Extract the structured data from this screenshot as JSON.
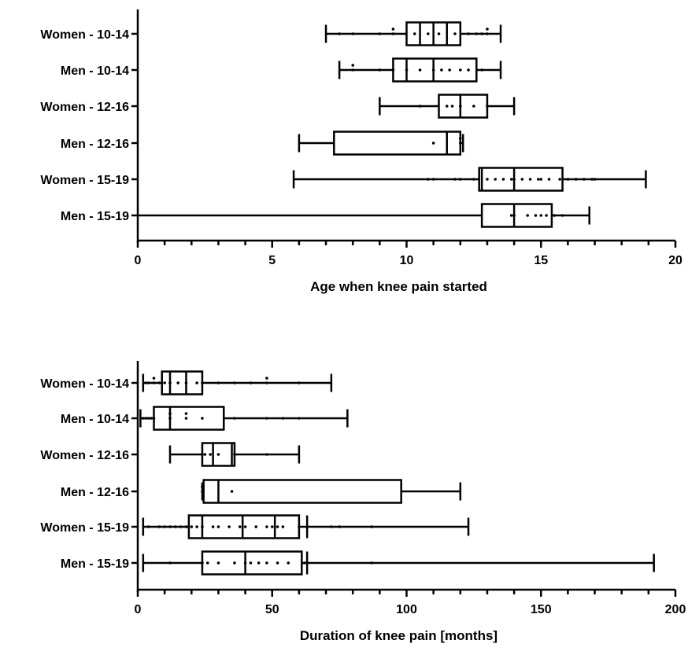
{
  "chart_data": [
    {
      "type": "box",
      "xlabel": "Age when knee pain started",
      "xlim": [
        0,
        20
      ],
      "xticks": [
        0,
        5,
        10,
        15,
        20
      ],
      "categories": [
        "Women - 10-14",
        "Men - 10-14",
        "Women - 12-16",
        "Men - 12-16",
        "Women - 15-19",
        "Men - 15-19"
      ],
      "boxes": [
        {
          "min": 7,
          "q1": 10,
          "median": 11,
          "q3": 12,
          "max": 13.5,
          "extra_lines": [
            10.5,
            11.5
          ]
        },
        {
          "min": 7.5,
          "q1": 9.5,
          "median": 11,
          "q3": 12.6,
          "max": 13.5,
          "extra_lines": [
            10
          ]
        },
        {
          "min": 9,
          "q1": 11.2,
          "median": 12,
          "q3": 13,
          "max": 14,
          "extra_lines": []
        },
        {
          "min": 6,
          "q1": 7.3,
          "median": 11.5,
          "q3": 12,
          "max": 12.1,
          "extra_lines": []
        },
        {
          "min": 5.8,
          "q1": 12.7,
          "median": 14,
          "q3": 15.8,
          "max": 18.9,
          "extra_lines": [
            12.8
          ]
        },
        {
          "min": 0,
          "q1": 12.8,
          "median": 14,
          "q3": 15.4,
          "max": 16.8,
          "extra_lines": []
        }
      ],
      "points": [
        [
          7.5,
          8,
          9,
          9.5,
          9.5,
          10.3,
          10.8,
          11.2,
          11.8,
          12.3,
          12.6,
          12.8,
          13,
          13
        ],
        [
          8,
          8,
          9,
          9.5,
          10,
          10.5,
          11,
          11.3,
          11.6,
          12,
          12.3,
          12.8
        ],
        [
          10.5,
          11.5,
          11.7,
          12,
          12.5,
          13
        ],
        [
          11,
          12,
          12
        ],
        [
          10.8,
          11,
          11.8,
          12,
          12.5,
          13,
          13.3,
          13.6,
          13.9,
          14,
          14.3,
          14.6,
          14.9,
          15,
          15.3,
          15.7,
          16,
          16.3,
          16.6,
          16.9,
          17
        ],
        [
          13.9,
          14,
          14.5,
          14.8,
          15,
          15.2,
          15.5,
          15.8
        ]
      ]
    },
    {
      "type": "box",
      "xlabel": "Duration of knee pain [months]",
      "xlim": [
        0,
        200
      ],
      "xticks": [
        0,
        50,
        100,
        150,
        200
      ],
      "categories": [
        "Women - 10-14",
        "Men - 10-14",
        "Women - 12-16",
        "Men - 12-16",
        "Women - 15-19",
        "Men - 15-19"
      ],
      "boxes": [
        {
          "min": 2,
          "q1": 9,
          "median": 18,
          "q3": 24,
          "max": 72,
          "extra_lines": [
            12
          ]
        },
        {
          "min": 1,
          "q1": 6,
          "median": 12,
          "q3": 32,
          "max": 78,
          "extra_lines": []
        },
        {
          "min": 12,
          "q1": 24,
          "median": 28,
          "q3": 36,
          "max": 60,
          "extra_lines": [
            35
          ]
        },
        {
          "min": 24,
          "q1": 24.5,
          "median": 30,
          "q3": 98,
          "max": 120,
          "extra_lines": []
        },
        {
          "min": 2,
          "q1": 19,
          "median": 39,
          "q3": 60,
          "max": 123,
          "extra_lines": [
            24,
            51,
            63
          ]
        },
        {
          "min": 2,
          "q1": 24,
          "median": 40,
          "q3": 61,
          "max": 192,
          "extra_lines": [
            63
          ]
        }
      ],
      "points": [
        [
          3,
          4,
          6,
          6,
          8,
          10,
          12,
          15,
          18,
          22,
          24,
          30,
          36,
          42,
          48,
          48,
          60
        ],
        [
          2,
          3,
          4,
          5,
          6,
          12,
          12,
          18,
          18,
          24,
          36,
          48,
          54,
          60
        ],
        [
          24,
          25,
          27,
          30,
          36,
          48
        ],
        [
          24,
          24,
          35
        ],
        [
          4,
          8,
          10,
          12,
          14,
          16,
          18,
          20,
          22,
          24,
          28,
          30,
          34,
          38,
          40,
          44,
          48,
          50,
          52,
          54,
          60,
          72,
          75,
          87
        ],
        [
          12,
          24,
          26,
          30,
          36,
          40,
          42,
          45,
          48,
          52,
          56,
          62,
          87
        ]
      ]
    }
  ]
}
